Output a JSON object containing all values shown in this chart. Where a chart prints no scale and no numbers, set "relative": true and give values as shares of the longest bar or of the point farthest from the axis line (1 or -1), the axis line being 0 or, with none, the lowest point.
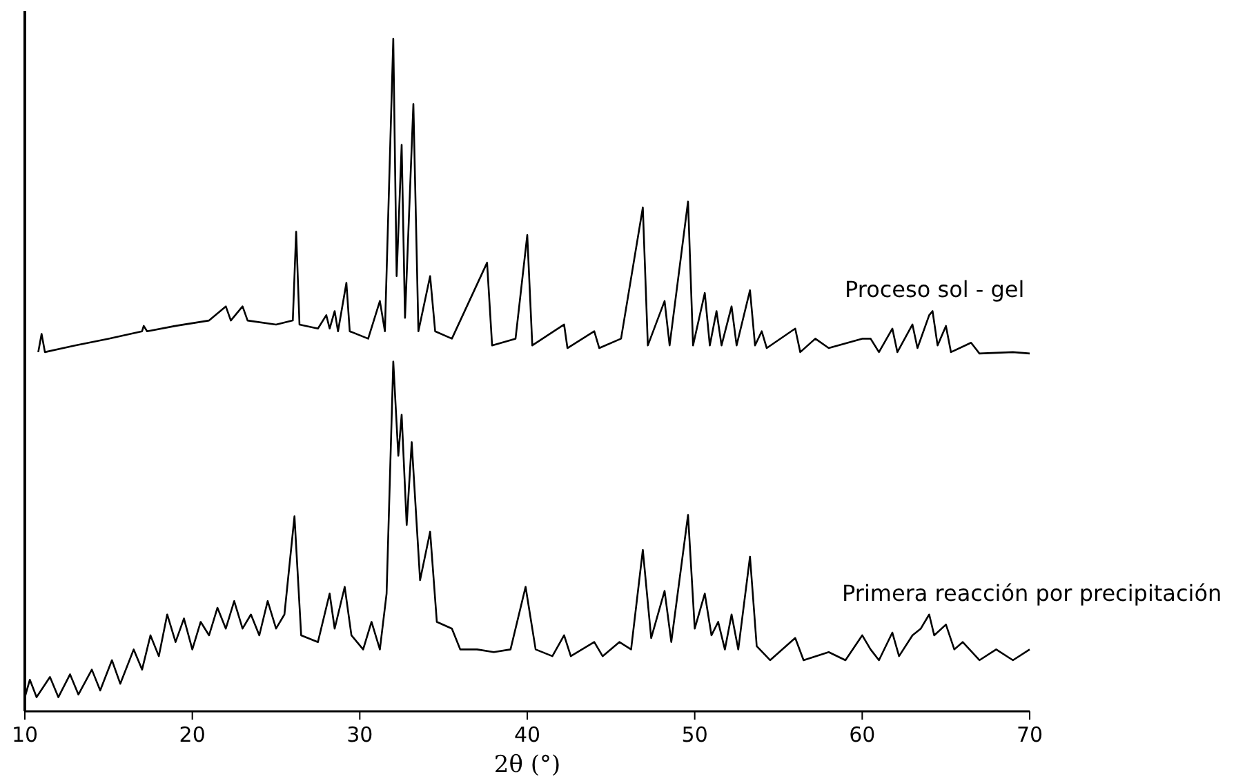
{
  "chart_data": {
    "type": "line",
    "relative": true,
    "xlabel": "2θ (°)",
    "xlim": [
      10,
      70
    ],
    "xticks": [
      10,
      20,
      30,
      40,
      50,
      60,
      70
    ],
    "grid": false,
    "marker": "none",
    "line_style": "solid",
    "series": [
      {
        "name": "Proceso sol - gel",
        "color": "#000000",
        "x": [
          10.8,
          11.0,
          11.2,
          13,
          15,
          17,
          17.1,
          17.3,
          19,
          21,
          22,
          22.3,
          23,
          23.3,
          25,
          26,
          26.2,
          26.4,
          27.5,
          28,
          28.2,
          28.5,
          28.7,
          29.2,
          29.4,
          30.5,
          31.2,
          31.5,
          32.0,
          32.2,
          32.5,
          32.7,
          33.2,
          33.5,
          34.2,
          34.5,
          35.5,
          37.6,
          37.9,
          39.3,
          40,
          40.3,
          42.2,
          42.4,
          44,
          44.3,
          45.6,
          46.9,
          47.2,
          48.2,
          48.5,
          49.6,
          49.9,
          50.6,
          50.9,
          51.3,
          51.6,
          52.2,
          52.5,
          53.3,
          53.6,
          54,
          54.3,
          56,
          56.3,
          57.2,
          58,
          60,
          60.5,
          61,
          61.8,
          62.1,
          63.0,
          63.3,
          64,
          64.2,
          64.5,
          65,
          65.3,
          66.5,
          67,
          69,
          70
        ],
        "values": [
          0.534,
          0.561,
          0.534,
          0.544,
          0.554,
          0.565,
          0.573,
          0.565,
          0.573,
          0.581,
          0.602,
          0.581,
          0.602,
          0.581,
          0.575,
          0.581,
          0.713,
          0.575,
          0.569,
          0.589,
          0.569,
          0.595,
          0.565,
          0.637,
          0.565,
          0.554,
          0.61,
          0.565,
          1,
          0.647,
          0.842,
          0.585,
          0.903,
          0.565,
          0.647,
          0.565,
          0.554,
          0.667,
          0.544,
          0.554,
          0.708,
          0.544,
          0.575,
          0.54,
          0.565,
          0.54,
          0.554,
          0.749,
          0.544,
          0.61,
          0.544,
          0.758,
          0.544,
          0.622,
          0.544,
          0.595,
          0.544,
          0.602,
          0.544,
          0.626,
          0.544,
          0.565,
          0.54,
          0.569,
          0.534,
          0.554,
          0.54,
          0.554,
          0.554,
          0.534,
          0.569,
          0.534,
          0.575,
          0.54,
          0.589,
          0.595,
          0.544,
          0.573,
          0.534,
          0.548,
          0.532,
          0.534,
          0.532
        ]
      },
      {
        "name": "Primera reacción por precipitación",
        "color": "#000000",
        "x": [
          10,
          10.3,
          10.7,
          11.5,
          12,
          12.7,
          13.2,
          14,
          14.5,
          15.2,
          15.7,
          16.5,
          17,
          17.5,
          18,
          18.5,
          19,
          19.5,
          20,
          20.5,
          21,
          21.5,
          22,
          22.5,
          23,
          23.5,
          24,
          24.5,
          25,
          25.5,
          26.1,
          26.5,
          27.5,
          28.2,
          28.5,
          29.1,
          29.5,
          30.2,
          30.7,
          31.2,
          31.6,
          32.0,
          32.3,
          32.5,
          32.8,
          33.1,
          33.6,
          34.2,
          34.6,
          35.5,
          36,
          37,
          38,
          39,
          39.9,
          40.5,
          41.5,
          42.2,
          42.6,
          44,
          44.5,
          45.5,
          46.2,
          46.9,
          47.4,
          48.2,
          48.6,
          49.6,
          50,
          50.6,
          51,
          51.4,
          51.8,
          52.2,
          52.6,
          53.3,
          53.7,
          54.5,
          56,
          56.5,
          58,
          59,
          60,
          60.5,
          61,
          61.8,
          62.2,
          63,
          63.5,
          64,
          64.3,
          65,
          65.5,
          66,
          67,
          68,
          69,
          70
        ],
        "values": [
          0.021,
          0.047,
          0.021,
          0.051,
          0.021,
          0.055,
          0.025,
          0.062,
          0.031,
          0.076,
          0.041,
          0.092,
          0.062,
          0.113,
          0.082,
          0.144,
          0.103,
          0.138,
          0.092,
          0.133,
          0.113,
          0.154,
          0.123,
          0.164,
          0.123,
          0.144,
          0.113,
          0.164,
          0.123,
          0.144,
          0.29,
          0.113,
          0.103,
          0.175,
          0.123,
          0.185,
          0.113,
          0.092,
          0.133,
          0.092,
          0.175,
          0.52,
          0.38,
          0.441,
          0.277,
          0.4,
          0.195,
          0.267,
          0.133,
          0.123,
          0.092,
          0.092,
          0.088,
          0.092,
          0.185,
          0.092,
          0.082,
          0.113,
          0.082,
          0.103,
          0.082,
          0.103,
          0.092,
          0.24,
          0.109,
          0.179,
          0.103,
          0.292,
          0.123,
          0.175,
          0.113,
          0.133,
          0.092,
          0.144,
          0.092,
          0.23,
          0.097,
          0.076,
          0.109,
          0.076,
          0.088,
          0.076,
          0.113,
          0.092,
          0.076,
          0.117,
          0.082,
          0.113,
          0.123,
          0.144,
          0.113,
          0.129,
          0.092,
          0.103,
          0.076,
          0.092,
          0.076,
          0.092
        ]
      }
    ]
  }
}
